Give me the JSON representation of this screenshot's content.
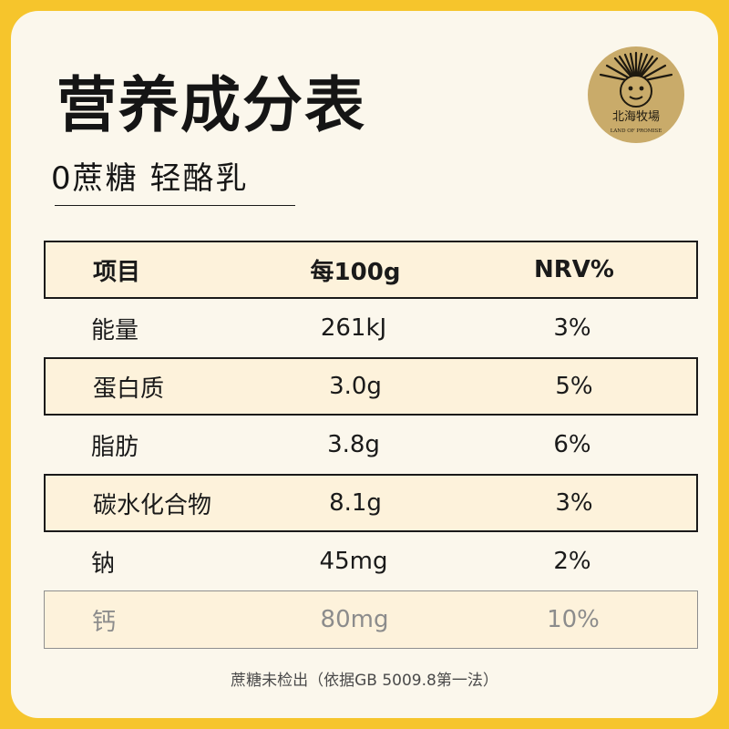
{
  "header": {
    "title": "营养成分表",
    "subtitle": "0蔗糖 轻酪乳"
  },
  "logo": {
    "icon": "sun-face-seal-icon",
    "name": "北海牧場",
    "tagline": "LAND OF PROMISE",
    "color": "#c9ab6a"
  },
  "table": {
    "headers": [
      "项目",
      "每100g",
      "NRV%"
    ],
    "rows": [
      {
        "item": "能量",
        "per100g": "261kJ",
        "nrv": "3%"
      },
      {
        "item": "蛋白质",
        "per100g": "3.0g",
        "nrv": "5%"
      },
      {
        "item": "脂肪",
        "per100g": "3.8g",
        "nrv": "6%"
      },
      {
        "item": "碳水化合物",
        "per100g": "8.1g",
        "nrv": "3%"
      },
      {
        "item": "钠",
        "per100g": "45mg",
        "nrv": "2%"
      },
      {
        "item": "钙",
        "per100g": "80mg",
        "nrv": "10%"
      }
    ]
  },
  "footnote": "蔗糖未检出（依据GB 5009.8第一法）",
  "colors": {
    "frame": "#f6c52c",
    "card": "#fbf7ec",
    "highlight_row": "#fdf2db",
    "text": "#1a1a1a"
  }
}
